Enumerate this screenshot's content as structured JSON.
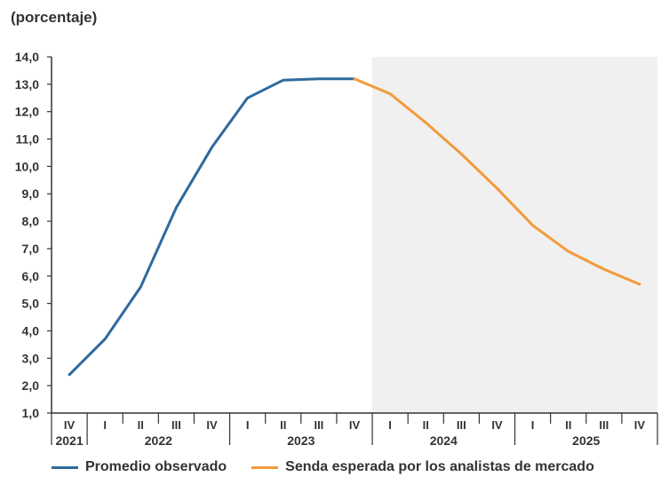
{
  "header": {
    "unit": "(porcentaje)"
  },
  "legend": {
    "items": [
      {
        "label": "Promedio observado",
        "color": "#2e6a9e"
      },
      {
        "label": "Senda esperada por los analistas de mercado",
        "color": "#f39a3b"
      }
    ]
  },
  "chart_data": {
    "type": "line",
    "ylim": [
      1.0,
      14.0
    ],
    "yticks": [
      "1,0",
      "2,0",
      "3,0",
      "4,0",
      "5,0",
      "6,0",
      "7,0",
      "8,0",
      "9,0",
      "10,0",
      "11,0",
      "12,0",
      "13,0",
      "14,0"
    ],
    "quarters": [
      "IV",
      "I",
      "II",
      "III",
      "IV",
      "I",
      "II",
      "III",
      "IV",
      "I",
      "II",
      "III",
      "IV",
      "I",
      "II",
      "III",
      "IV"
    ],
    "years": [
      {
        "label": "2021",
        "start": 0,
        "end": 0
      },
      {
        "label": "2022",
        "start": 1,
        "end": 4
      },
      {
        "label": "2023",
        "start": 5,
        "end": 8
      },
      {
        "label": "2024",
        "start": 9,
        "end": 12
      },
      {
        "label": "2025",
        "start": 13,
        "end": 16
      }
    ],
    "forecast_shade_from_index": 8.5,
    "series": [
      {
        "name": "Promedio observado",
        "color": "#2e6a9e",
        "points": [
          [
            0,
            2.4
          ],
          [
            1,
            3.7
          ],
          [
            2,
            5.6
          ],
          [
            3,
            8.5
          ],
          [
            4,
            10.7
          ],
          [
            5,
            12.5
          ],
          [
            6,
            13.15
          ],
          [
            7,
            13.2
          ],
          [
            8,
            13.2
          ]
        ]
      },
      {
        "name": "Senda esperada por los analistas de mercado",
        "color": "#f39a3b",
        "points": [
          [
            8,
            13.2
          ],
          [
            9,
            12.65
          ],
          [
            10,
            11.6
          ],
          [
            11,
            10.45
          ],
          [
            12,
            9.2
          ],
          [
            13,
            7.85
          ],
          [
            14,
            6.9
          ],
          [
            15,
            6.25
          ],
          [
            16,
            5.7
          ]
        ]
      }
    ]
  }
}
